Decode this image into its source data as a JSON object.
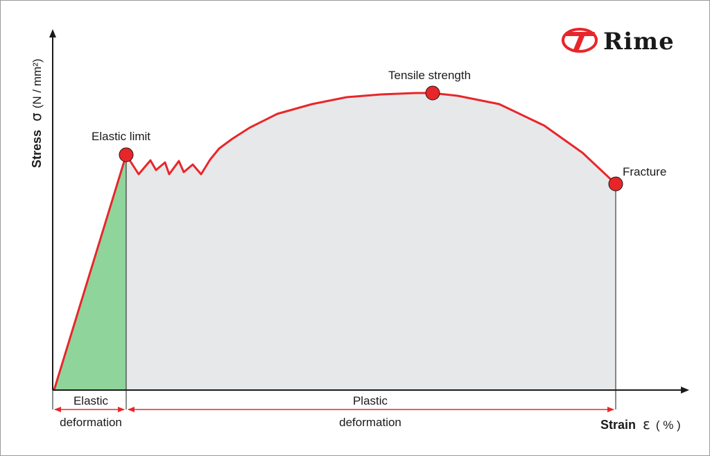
{
  "brand": {
    "name": "Rime",
    "logo_icon": "rime-logo-icon",
    "logo_color": "#e8262a"
  },
  "y_axis": {
    "title": "Stress",
    "symbol": "σ",
    "unit": "(N / mm²)"
  },
  "x_axis": {
    "title": "Strain",
    "symbol": "ε",
    "unit": "( % )"
  },
  "points": {
    "elastic_limit": "Elastic limit",
    "tensile_strength": "Tensile strength",
    "fracture": "Fracture"
  },
  "regions": {
    "elastic": {
      "line1": "Elastic",
      "line2": "deformation"
    },
    "plastic": {
      "line1": "Plastic",
      "line2": "deformation"
    }
  },
  "colors": {
    "curve": "#e8262a",
    "elastic_fill": "#8fd49b",
    "plastic_fill": "#e7e8ea",
    "marker": "#e8262a",
    "axis": "#1a1a1a"
  }
}
